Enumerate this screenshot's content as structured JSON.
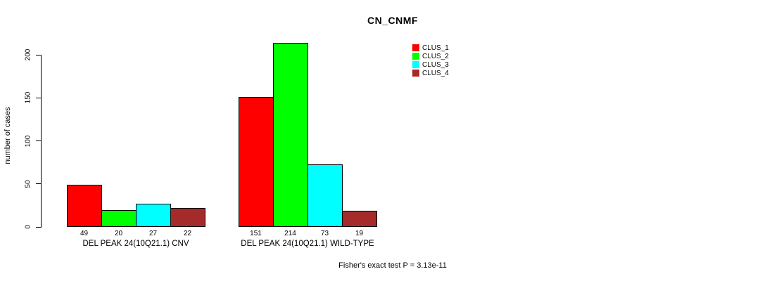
{
  "chart_data": {
    "type": "bar",
    "title": "CN_CNMF",
    "ylabel": "number of cases",
    "xlabel": "",
    "ylim": [
      0,
      200
    ],
    "yticks": [
      0,
      50,
      100,
      150,
      200
    ],
    "grid": false,
    "legend_position": "top-right",
    "bar_value_labels": true,
    "categories": [
      "DEL PEAK 24(10Q21.1) CNV",
      "DEL PEAK 24(10Q21.1) WILD-TYPE"
    ],
    "series": [
      {
        "name": "CLUS_1",
        "color": "#ff0000",
        "values": [
          49,
          151
        ]
      },
      {
        "name": "CLUS_2",
        "color": "#00ff00",
        "values": [
          20,
          214
        ]
      },
      {
        "name": "CLUS_3",
        "color": "#00ffff",
        "values": [
          27,
          73
        ]
      },
      {
        "name": "CLUS_4",
        "color": "#a52a2a",
        "values": [
          22,
          19
        ]
      }
    ],
    "annotation": "Fisher's exact test P = 3.13e-11"
  }
}
